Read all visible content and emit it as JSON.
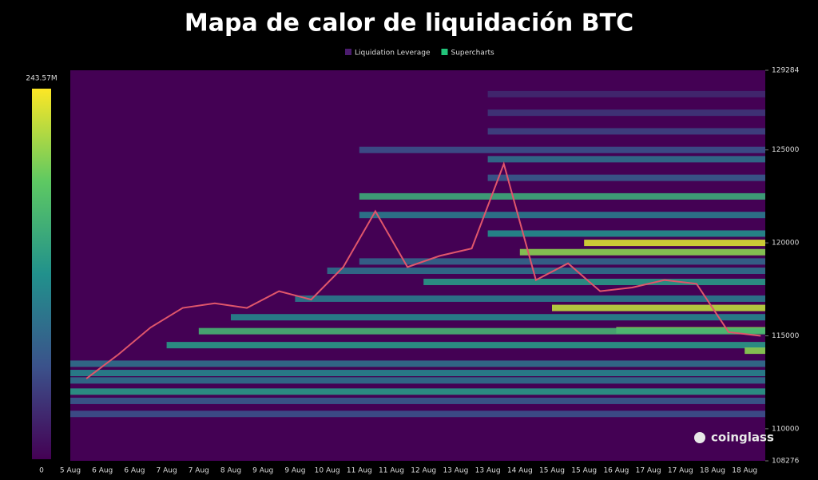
{
  "chart_data": {
    "type": "heatmap",
    "title": "Mapa de calor de liquidación BTC",
    "legend": [
      {
        "name": "Liquidation Leverage",
        "color": "#4b1c6e"
      },
      {
        "name": "Supercharts",
        "color": "#22c37a"
      }
    ],
    "categories": [
      "5 Aug",
      "6 Aug",
      "6 Aug",
      "7 Aug",
      "7 Aug",
      "8 Aug",
      "9 Aug",
      "9 Aug",
      "10 Aug",
      "11 Aug",
      "11 Aug",
      "12 Aug",
      "13 Aug",
      "13 Aug",
      "14 Aug",
      "15 Aug",
      "15 Aug",
      "16 Aug",
      "17 Aug",
      "17 Aug",
      "18 Aug",
      "18 Aug"
    ],
    "ylim": [
      108276,
      129284
    ],
    "yticks": [
      108276,
      110000,
      115000,
      120000,
      125000,
      129284
    ],
    "zlim": [
      0,
      243.57
    ],
    "zticks": [
      {
        "value": 243.57,
        "label": "243.57M"
      },
      0
    ],
    "background": "#440154",
    "levels": [
      {
        "price": 128000,
        "value": 30,
        "start": 13
      },
      {
        "price": 127000,
        "value": 40,
        "start": 13
      },
      {
        "price": 126000,
        "value": 50,
        "start": 13
      },
      {
        "price": 125000,
        "value": 60,
        "start": 9
      },
      {
        "price": 124500,
        "value": 90,
        "start": 13
      },
      {
        "price": 123500,
        "value": 70,
        "start": 13
      },
      {
        "price": 122500,
        "value": 150,
        "start": 9
      },
      {
        "price": 121500,
        "value": 100,
        "start": 9
      },
      {
        "price": 120500,
        "value": 120,
        "start": 13
      },
      {
        "price": 120000,
        "value": 230,
        "start": 16
      },
      {
        "price": 119500,
        "value": 200,
        "start": 14
      },
      {
        "price": 119000,
        "value": 80,
        "start": 9
      },
      {
        "price": 118500,
        "value": 90,
        "start": 8
      },
      {
        "price": 117900,
        "value": 130,
        "start": 11
      },
      {
        "price": 117000,
        "value": 100,
        "start": 7
      },
      {
        "price": 116500,
        "value": 220,
        "start": 15
      },
      {
        "price": 116000,
        "value": 110,
        "start": 5
      },
      {
        "price": 115300,
        "value": 200,
        "start": 17
      },
      {
        "price": 115250,
        "value": 160,
        "start": 4
      },
      {
        "price": 114500,
        "value": 130,
        "start": 3
      },
      {
        "price": 114200,
        "value": 200,
        "start": 21
      },
      {
        "price": 113500,
        "value": 90,
        "start": 0
      },
      {
        "price": 113000,
        "value": 110,
        "start": 0
      },
      {
        "price": 112600,
        "value": 90,
        "start": 0
      },
      {
        "price": 112000,
        "value": 130,
        "start": 0
      },
      {
        "price": 111500,
        "value": 70,
        "start": 0
      },
      {
        "price": 110800,
        "value": 60,
        "start": 0
      }
    ],
    "price": {
      "color": "#e0566b",
      "values": [
        112700,
        114000,
        115450,
        116500,
        116750,
        116500,
        117400,
        116950,
        118700,
        121700,
        118700,
        119300,
        119700,
        124250,
        118000,
        118900,
        117400,
        117600,
        118000,
        117800,
        115200,
        115000
      ]
    },
    "watermark": "coinglass"
  }
}
